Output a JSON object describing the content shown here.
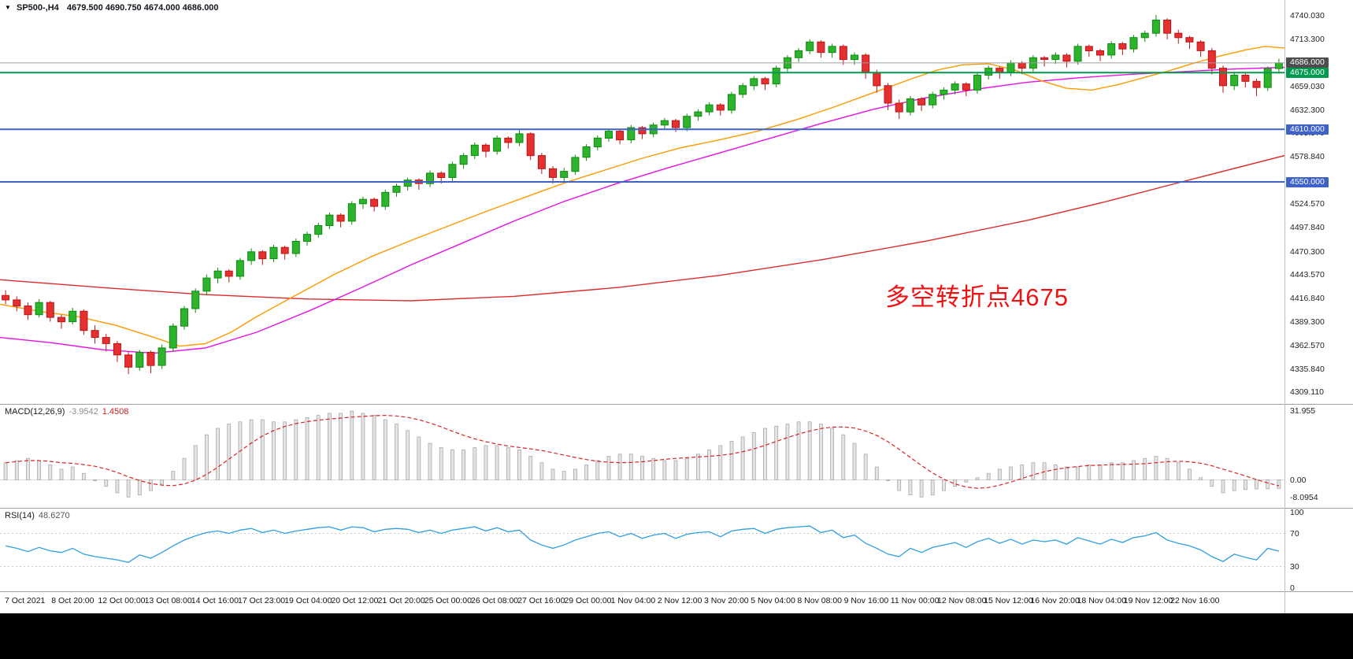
{
  "header": {
    "icon": "▼",
    "symbol_timeframe": "SP500-,H4",
    "ohlc": "4679.500 4690.750 4674.000 4686.000"
  },
  "annotation": {
    "text": "多空转折点4675",
    "color": "#ee1212"
  },
  "price_axis": {
    "gridlines": [
      "4740.030",
      "4713.300",
      "4659.030",
      "4632.300",
      "4605.570",
      "4578.840",
      "4524.570",
      "4497.840",
      "4470.300",
      "4443.570",
      "4416.840",
      "4389.300",
      "4362.570",
      "4335.840",
      "4309.110"
    ],
    "boxes": [
      {
        "label": "4686.000",
        "color": "#4d4d4d"
      },
      {
        "label": "4675.000",
        "color": "#009a4e"
      },
      {
        "label": "4610.000",
        "color": "#3f62c9"
      },
      {
        "label": "4550.000",
        "color": "#3f62c9"
      }
    ]
  },
  "macd_panel": {
    "label": "MACD(12,26,9)",
    "main_value": "-3.9542",
    "signal_value": "1.4508",
    "axis_labels": [
      "31.955",
      "0.00",
      "-8.0954"
    ]
  },
  "rsi_panel": {
    "label": "RSI(14)",
    "value": "48.6270",
    "axis_labels": [
      "100",
      "70",
      "30",
      "0"
    ]
  },
  "time_axis": {
    "labels": [
      "7 Oct 2021",
      "8 Oct 20:00",
      "12 Oct 00:00",
      "13 Oct 08:00",
      "14 Oct 16:00",
      "17 Oct 23:00",
      "19 Oct 04:00",
      "20 Oct 12:00",
      "21 Oct 20:00",
      "25 Oct 00:00",
      "26 Oct 08:00",
      "27 Oct 16:00",
      "29 Oct 00:00",
      "1 Nov 04:00",
      "2 Nov 12:00",
      "3 Nov 20:00",
      "5 Nov 04:00",
      "8 Nov 08:00",
      "9 Nov 16:00",
      "11 Nov 00:00",
      "12 Nov 08:00",
      "15 Nov 12:00",
      "16 Nov 20:00",
      "18 Nov 04:00",
      "19 Nov 12:00",
      "22 Nov 16:00"
    ]
  },
  "chart_data": {
    "type": "candlestick",
    "symbol": "SP500-",
    "timeframe": "H4",
    "title": "SP500-,H4 4679.500 4690.750 4674.000 4686.000",
    "last_ohlc": {
      "open": 4679.5,
      "high": 4690.75,
      "low": 4674.0,
      "close": 4686.0
    },
    "price_ylim": [
      4296,
      4758
    ],
    "grid": false,
    "colors": {
      "up": "#0d8c0d",
      "up_fill": "#2db32d",
      "down": "#bb1515",
      "down_fill": "#e43030",
      "macd_hist_fill": "#e4e4e4",
      "macd_hist_stroke": "#a9a9a9",
      "macd_signal": "#dd2222",
      "rsi": "#2f9fe0"
    },
    "hlines": [
      {
        "price": 4686.0,
        "color": "#9c9c9c",
        "width": 1
      },
      {
        "price": 4675.0,
        "color": "#009a4e",
        "width": 2
      },
      {
        "price": 4610.0,
        "color": "#3f62c9",
        "width": 2
      },
      {
        "price": 4550.0,
        "color": "#3f62c9",
        "width": 2
      }
    ],
    "moving_averages": [
      {
        "name": "ma-slow-red",
        "color": "#dd2a2a",
        "points": [
          [
            0,
            4438
          ],
          [
            0.08,
            4429
          ],
          [
            0.16,
            4421
          ],
          [
            0.24,
            4416
          ],
          [
            0.32,
            4414
          ],
          [
            0.4,
            4419
          ],
          [
            0.48,
            4429
          ],
          [
            0.56,
            4443
          ],
          [
            0.64,
            4461
          ],
          [
            0.72,
            4482
          ],
          [
            0.8,
            4506
          ],
          [
            0.86,
            4527
          ],
          [
            0.92,
            4550
          ],
          [
            1.0,
            4580
          ]
        ]
      },
      {
        "name": "ma-mid-magenta",
        "color": "#e511e5",
        "points": [
          [
            0,
            4372
          ],
          [
            0.04,
            4366
          ],
          [
            0.08,
            4358
          ],
          [
            0.12,
            4354
          ],
          [
            0.16,
            4360
          ],
          [
            0.2,
            4378
          ],
          [
            0.24,
            4402
          ],
          [
            0.28,
            4428
          ],
          [
            0.32,
            4455
          ],
          [
            0.36,
            4480
          ],
          [
            0.4,
            4505
          ],
          [
            0.44,
            4528
          ],
          [
            0.48,
            4548
          ],
          [
            0.52,
            4566
          ],
          [
            0.56,
            4583
          ],
          [
            0.6,
            4600
          ],
          [
            0.64,
            4617
          ],
          [
            0.68,
            4633
          ],
          [
            0.72,
            4646
          ],
          [
            0.76,
            4656
          ],
          [
            0.8,
            4664
          ],
          [
            0.84,
            4669
          ],
          [
            0.88,
            4673
          ],
          [
            0.92,
            4676
          ],
          [
            0.96,
            4679
          ],
          [
            1.0,
            4681
          ]
        ]
      },
      {
        "name": "ma-fast-orange",
        "color": "#ff9900",
        "points": [
          [
            0,
            4410
          ],
          [
            0.03,
            4402
          ],
          [
            0.06,
            4396
          ],
          [
            0.09,
            4386
          ],
          [
            0.12,
            4372
          ],
          [
            0.14,
            4362
          ],
          [
            0.16,
            4365
          ],
          [
            0.18,
            4378
          ],
          [
            0.2,
            4396
          ],
          [
            0.23,
            4420
          ],
          [
            0.26,
            4444
          ],
          [
            0.29,
            4465
          ],
          [
            0.32,
            4483
          ],
          [
            0.35,
            4500
          ],
          [
            0.38,
            4517
          ],
          [
            0.41,
            4533
          ],
          [
            0.44,
            4549
          ],
          [
            0.47,
            4563
          ],
          [
            0.5,
            4577
          ],
          [
            0.53,
            4589
          ],
          [
            0.56,
            4598
          ],
          [
            0.59,
            4608
          ],
          [
            0.62,
            4621
          ],
          [
            0.65,
            4636
          ],
          [
            0.68,
            4652
          ],
          [
            0.71,
            4668
          ],
          [
            0.73,
            4678
          ],
          [
            0.75,
            4684
          ],
          [
            0.77,
            4685
          ],
          [
            0.79,
            4678
          ],
          [
            0.81,
            4666
          ],
          [
            0.83,
            4657
          ],
          [
            0.85,
            4655
          ],
          [
            0.87,
            4661
          ],
          [
            0.89,
            4669
          ],
          [
            0.91,
            4677
          ],
          [
            0.93,
            4686
          ],
          [
            0.95,
            4694
          ],
          [
            0.97,
            4701
          ],
          [
            0.985,
            4705
          ],
          [
            1.0,
            4703
          ]
        ]
      }
    ],
    "candles": [
      [
        4420,
        4426,
        4410,
        4415
      ],
      [
        4415,
        4419,
        4402,
        4408
      ],
      [
        4408,
        4412,
        4392,
        4398
      ],
      [
        4398,
        4416,
        4395,
        4412
      ],
      [
        4412,
        4414,
        4390,
        4395
      ],
      [
        4395,
        4398,
        4382,
        4390
      ],
      [
        4390,
        4406,
        4387,
        4402
      ],
      [
        4402,
        4404,
        4375,
        4380
      ],
      [
        4380,
        4386,
        4365,
        4372
      ],
      [
        4372,
        4376,
        4356,
        4365
      ],
      [
        4365,
        4368,
        4344,
        4352
      ],
      [
        4352,
        4356,
        4330,
        4338
      ],
      [
        4338,
        4358,
        4334,
        4355
      ],
      [
        4355,
        4357,
        4331,
        4340
      ],
      [
        4340,
        4364,
        4336,
        4360
      ],
      [
        4360,
        4388,
        4356,
        4385
      ],
      [
        4385,
        4408,
        4381,
        4405
      ],
      [
        4405,
        4428,
        4400,
        4425
      ],
      [
        4425,
        4444,
        4420,
        4440
      ],
      [
        4440,
        4452,
        4434,
        4448
      ],
      [
        4448,
        4450,
        4435,
        4442
      ],
      [
        4442,
        4463,
        4438,
        4460
      ],
      [
        4460,
        4474,
        4455,
        4470
      ],
      [
        4470,
        4472,
        4455,
        4462
      ],
      [
        4462,
        4478,
        4458,
        4475
      ],
      [
        4475,
        4477,
        4461,
        4468
      ],
      [
        4468,
        4485,
        4464,
        4482
      ],
      [
        4482,
        4493,
        4477,
        4490
      ],
      [
        4490,
        4503,
        4486,
        4500
      ],
      [
        4500,
        4515,
        4496,
        4512
      ],
      [
        4512,
        4514,
        4498,
        4505
      ],
      [
        4505,
        4528,
        4501,
        4525
      ],
      [
        4525,
        4533,
        4519,
        4530
      ],
      [
        4530,
        4532,
        4516,
        4522
      ],
      [
        4522,
        4541,
        4518,
        4538
      ],
      [
        4538,
        4548,
        4533,
        4545
      ],
      [
        4545,
        4555,
        4540,
        4552
      ],
      [
        4552,
        4554,
        4541,
        4548
      ],
      [
        4548,
        4563,
        4544,
        4560
      ],
      [
        4560,
        4562,
        4548,
        4555
      ],
      [
        4555,
        4573,
        4551,
        4570
      ],
      [
        4570,
        4583,
        4565,
        4580
      ],
      [
        4580,
        4595,
        4576,
        4592
      ],
      [
        4592,
        4594,
        4578,
        4585
      ],
      [
        4585,
        4603,
        4581,
        4600
      ],
      [
        4600,
        4602,
        4588,
        4595
      ],
      [
        4595,
        4609,
        4591,
        4605
      ],
      [
        4605,
        4607,
        4575,
        4580
      ],
      [
        4580,
        4583,
        4559,
        4565
      ],
      [
        4565,
        4568,
        4548,
        4555
      ],
      [
        4555,
        4566,
        4550,
        4562
      ],
      [
        4562,
        4581,
        4558,
        4578
      ],
      [
        4578,
        4593,
        4574,
        4590
      ],
      [
        4590,
        4603,
        4586,
        4600
      ],
      [
        4600,
        4611,
        4596,
        4608
      ],
      [
        4608,
        4610,
        4593,
        4598
      ],
      [
        4598,
        4615,
        4594,
        4612
      ],
      [
        4612,
        4614,
        4599,
        4605
      ],
      [
        4605,
        4618,
        4601,
        4615
      ],
      [
        4615,
        4623,
        4610,
        4620
      ],
      [
        4620,
        4622,
        4607,
        4612
      ],
      [
        4612,
        4628,
        4608,
        4625
      ],
      [
        4625,
        4633,
        4620,
        4630
      ],
      [
        4630,
        4641,
        4626,
        4638
      ],
      [
        4638,
        4640,
        4626,
        4632
      ],
      [
        4632,
        4653,
        4628,
        4650
      ],
      [
        4650,
        4663,
        4646,
        4660
      ],
      [
        4660,
        4671,
        4655,
        4668
      ],
      [
        4668,
        4670,
        4655,
        4662
      ],
      [
        4662,
        4683,
        4658,
        4680
      ],
      [
        4680,
        4695,
        4676,
        4692
      ],
      [
        4692,
        4703,
        4687,
        4700
      ],
      [
        4700,
        4713,
        4696,
        4710
      ],
      [
        4710,
        4712,
        4692,
        4698
      ],
      [
        4698,
        4708,
        4692,
        4705
      ],
      [
        4705,
        4707,
        4684,
        4690
      ],
      [
        4690,
        4698,
        4684,
        4695
      ],
      [
        4695,
        4697,
        4668,
        4675
      ],
      [
        4675,
        4678,
        4652,
        4660
      ],
      [
        4660,
        4663,
        4632,
        4640
      ],
      [
        4640,
        4644,
        4622,
        4630
      ],
      [
        4630,
        4648,
        4626,
        4645
      ],
      [
        4645,
        4647,
        4631,
        4638
      ],
      [
        4638,
        4653,
        4634,
        4650
      ],
      [
        4650,
        4658,
        4644,
        4655
      ],
      [
        4655,
        4665,
        4650,
        4662
      ],
      [
        4662,
        4664,
        4648,
        4655
      ],
      [
        4655,
        4675,
        4651,
        4672
      ],
      [
        4672,
        4683,
        4667,
        4680
      ],
      [
        4680,
        4682,
        4668,
        4675
      ],
      [
        4675,
        4689,
        4671,
        4686
      ],
      [
        4686,
        4688,
        4673,
        4680
      ],
      [
        4680,
        4695,
        4676,
        4692
      ],
      [
        4692,
        4694,
        4682,
        4690
      ],
      [
        4690,
        4698,
        4685,
        4695
      ],
      [
        4695,
        4697,
        4681,
        4688
      ],
      [
        4688,
        4708,
        4684,
        4705
      ],
      [
        4705,
        4707,
        4693,
        4700
      ],
      [
        4700,
        4702,
        4688,
        4695
      ],
      [
        4695,
        4711,
        4691,
        4708
      ],
      [
        4708,
        4710,
        4695,
        4702
      ],
      [
        4702,
        4718,
        4698,
        4715
      ],
      [
        4715,
        4723,
        4710,
        4720
      ],
      [
        4720,
        4741,
        4716,
        4735
      ],
      [
        4735,
        4737,
        4713,
        4720
      ],
      [
        4720,
        4724,
        4708,
        4715
      ],
      [
        4715,
        4717,
        4702,
        4710
      ],
      [
        4710,
        4712,
        4693,
        4700
      ],
      [
        4700,
        4703,
        4673,
        4680
      ],
      [
        4680,
        4683,
        4652,
        4660
      ],
      [
        4660,
        4676,
        4655,
        4672
      ],
      [
        4672,
        4674,
        4658,
        4665
      ],
      [
        4665,
        4668,
        4648,
        4658
      ],
      [
        4658,
        4682,
        4654,
        4679.5
      ],
      [
        4679.5,
        4690.75,
        4674,
        4686
      ]
    ],
    "macd": {
      "ylim": [
        -13,
        35
      ],
      "main_value": -3.9542,
      "signal_value": 1.4508,
      "histogram": [
        8,
        9,
        10,
        9,
        7,
        5,
        6,
        3,
        0,
        -3,
        -6,
        -8,
        -7,
        -5,
        -2,
        4,
        10,
        16,
        21,
        24,
        26,
        27,
        28,
        28,
        27,
        27,
        28,
        29,
        30,
        31,
        31,
        32,
        31,
        30,
        28,
        26,
        23,
        20,
        17,
        15,
        14,
        14,
        15,
        16,
        16,
        15,
        14,
        11,
        8,
        5,
        4,
        5,
        7,
        9,
        11,
        12,
        12,
        11,
        10,
        9,
        9,
        10,
        12,
        14,
        16,
        18,
        20,
        22,
        24,
        25,
        26,
        27,
        27,
        26,
        24,
        21,
        17,
        12,
        6,
        0,
        -5,
        -7,
        -8,
        -7,
        -5,
        -3,
        -1,
        1,
        3,
        5,
        6,
        7,
        8,
        8,
        7,
        6,
        6,
        7,
        7,
        8,
        8,
        9,
        10,
        11,
        10,
        8,
        5,
        1,
        -3,
        -6,
        -5,
        -4.5,
        -4.2,
        -4.1,
        -3.95
      ]
    },
    "rsi": {
      "ylim": [
        0,
        100
      ],
      "levels": [
        70,
        30
      ],
      "value": 48.627,
      "values": [
        55,
        52,
        48,
        53,
        49,
        47,
        52,
        45,
        42,
        40,
        38,
        35,
        44,
        40,
        47,
        55,
        62,
        67,
        71,
        73,
        70,
        74,
        76,
        71,
        74,
        70,
        73,
        75,
        77,
        78,
        74,
        78,
        77,
        72,
        75,
        76,
        75,
        71,
        74,
        70,
        74,
        76,
        78,
        73,
        77,
        72,
        74,
        62,
        56,
        52,
        56,
        62,
        66,
        70,
        72,
        66,
        70,
        64,
        68,
        70,
        64,
        69,
        71,
        72,
        66,
        73,
        75,
        76,
        70,
        75,
        77,
        78,
        79,
        71,
        74,
        65,
        68,
        58,
        52,
        45,
        42,
        52,
        47,
        53,
        56,
        59,
        53,
        60,
        64,
        58,
        63,
        57,
        62,
        60,
        62,
        57,
        65,
        61,
        57,
        63,
        59,
        65,
        67,
        71,
        62,
        58,
        55,
        50,
        42,
        36,
        45,
        41,
        38,
        52,
        48.6
      ]
    }
  }
}
